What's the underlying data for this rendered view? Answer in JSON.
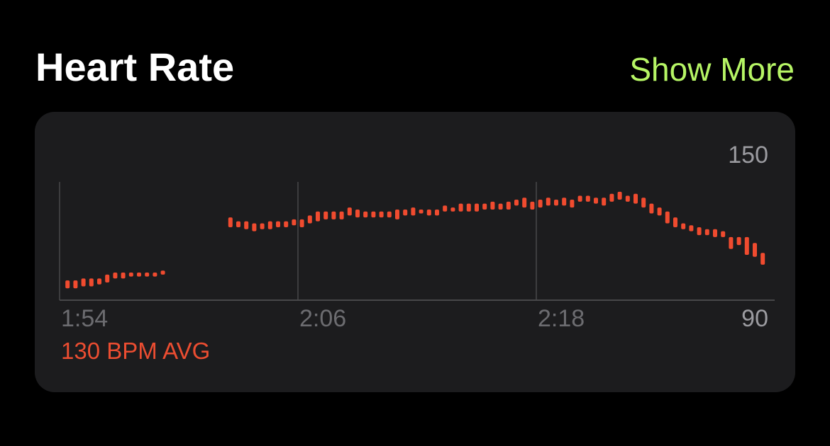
{
  "header": {
    "title": "Heart Rate",
    "link": "Show More"
  },
  "chart_data": {
    "type": "range-bar",
    "annotation": "130 BPM AVG",
    "xlim": [
      114,
      150
    ],
    "xticks": [
      {
        "value": 114,
        "label": "1:54"
      },
      {
        "value": 126,
        "label": "2:06"
      },
      {
        "value": 138,
        "label": "2:18"
      }
    ],
    "ylim": [
      90,
      150
    ],
    "yticks": [
      90,
      150
    ],
    "grid": true,
    "x": [
      114.4,
      114.8,
      115.2,
      115.6,
      116.0,
      116.4,
      116.8,
      117.2,
      117.6,
      118.0,
      118.4,
      118.8,
      119.2,
      122.6,
      123.0,
      123.4,
      123.8,
      124.2,
      124.6,
      125.0,
      125.4,
      125.8,
      126.2,
      126.6,
      127.0,
      127.4,
      127.8,
      128.2,
      128.6,
      129.0,
      129.4,
      129.8,
      130.2,
      130.6,
      131.0,
      131.4,
      131.8,
      132.2,
      132.6,
      133.0,
      133.4,
      133.8,
      134.2,
      134.6,
      135.0,
      135.4,
      135.8,
      136.2,
      136.6,
      137.0,
      137.4,
      137.8,
      138.2,
      138.6,
      139.0,
      139.4,
      139.8,
      140.2,
      140.6,
      141.0,
      141.4,
      141.8,
      142.2,
      142.6,
      143.0,
      143.4,
      143.8,
      144.2,
      144.6,
      145.0,
      145.4,
      145.8,
      146.2,
      146.6,
      147.0,
      147.4,
      147.8,
      148.2,
      148.6,
      149.0,
      149.4
    ],
    "series": [
      {
        "color": "#f04b2f",
        "low": [
          96,
          96,
          97,
          97,
          98,
          99,
          101,
          101,
          102,
          102,
          102,
          102,
          103,
          127,
          127,
          126,
          125,
          126,
          126,
          127,
          127,
          128,
          127,
          129,
          130,
          131,
          131,
          131,
          133,
          132,
          132,
          132,
          132,
          132,
          131,
          133,
          133,
          134,
          133,
          133,
          135,
          135,
          135,
          135,
          135,
          136,
          136,
          136,
          136,
          138,
          137,
          136,
          137,
          138,
          138,
          138,
          137,
          140,
          140,
          139,
          138,
          140,
          141,
          140,
          139,
          137,
          134,
          133,
          129,
          127,
          126,
          125,
          123,
          123,
          122,
          122,
          116,
          118,
          113,
          112,
          108
        ],
        "high": [
          100,
          100,
          101,
          101,
          101,
          103,
          104,
          104,
          104,
          104,
          104,
          104,
          105,
          132,
          130,
          130,
          129,
          129,
          130,
          130,
          130,
          131,
          131,
          133,
          135,
          135,
          135,
          135,
          137,
          136,
          135,
          135,
          135,
          135,
          136,
          136,
          137,
          136,
          136,
          136,
          138,
          137,
          139,
          139,
          139,
          139,
          140,
          139,
          140,
          141,
          142,
          140,
          141,
          142,
          141,
          142,
          141,
          143,
          143,
          142,
          142,
          144,
          145,
          143,
          144,
          142,
          139,
          137,
          135,
          132,
          129,
          128,
          127,
          126,
          126,
          125,
          122,
          122,
          122,
          119,
          114
        ]
      }
    ]
  }
}
